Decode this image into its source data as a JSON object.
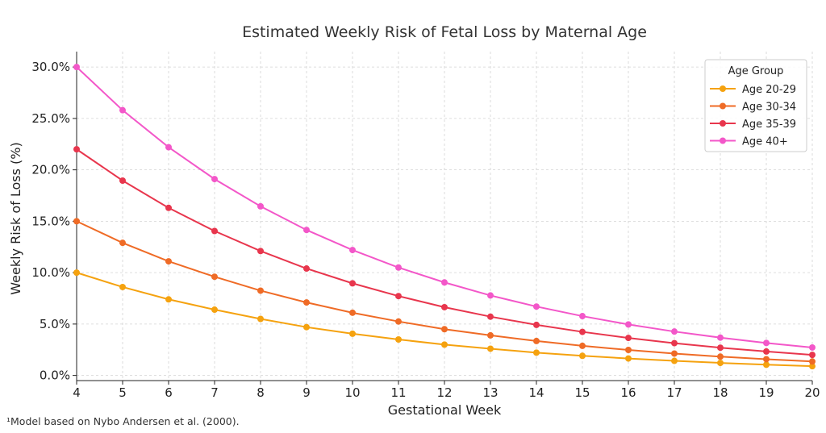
{
  "chart_data": {
    "type": "line",
    "title": "Estimated Weekly Risk of Fetal Loss by Maternal Age",
    "xlabel": "Gestational Week",
    "ylabel": "Weekly Risk of Loss (%)",
    "xlim": [
      4,
      20
    ],
    "ylim": [
      -0.5,
      31.5
    ],
    "x": [
      4,
      5,
      6,
      7,
      8,
      9,
      10,
      11,
      12,
      13,
      14,
      15,
      16,
      17,
      18,
      19,
      20
    ],
    "x_tick_labels": [
      "4",
      "5",
      "6",
      "7",
      "8",
      "9",
      "10",
      "11",
      "12",
      "13",
      "14",
      "15",
      "16",
      "17",
      "18",
      "19",
      "20"
    ],
    "y_ticks": [
      0,
      5,
      10,
      15,
      20,
      25,
      30
    ],
    "y_tick_labels": [
      "0.0%",
      "5.0%",
      "10.0%",
      "15.0%",
      "20.0%",
      "25.0%",
      "30.0%"
    ],
    "grid": true,
    "legend": {
      "title": "Age Group",
      "placement": "top-right"
    },
    "series": [
      {
        "name": "Age 20-29",
        "color": "#f5a20f",
        "values": [
          10.0,
          8.6,
          7.4,
          6.4,
          5.5,
          4.7,
          4.06,
          3.5,
          3.0,
          2.6,
          2.22,
          1.91,
          1.65,
          1.42,
          1.22,
          1.05,
          0.9
        ]
      },
      {
        "name": "Age 30-34",
        "color": "#ef6b26",
        "values": [
          15.0,
          12.9,
          11.1,
          9.6,
          8.25,
          7.1,
          6.1,
          5.25,
          4.5,
          3.9,
          3.35,
          2.88,
          2.48,
          2.13,
          1.83,
          1.58,
          1.36
        ]
      },
      {
        "name": "Age 35-39",
        "color": "#e8364d",
        "values": [
          22.0,
          18.95,
          16.3,
          14.05,
          12.1,
          10.4,
          8.96,
          7.72,
          6.64,
          5.72,
          4.92,
          4.24,
          3.65,
          3.14,
          2.7,
          2.33,
          2.0
        ]
      },
      {
        "name": "Age 40+",
        "color": "#f357c9",
        "values": [
          30.0,
          25.8,
          22.2,
          19.1,
          16.45,
          14.15,
          12.2,
          10.5,
          9.05,
          7.78,
          6.7,
          5.77,
          4.96,
          4.27,
          3.68,
          3.16,
          2.72
        ]
      }
    ]
  },
  "footnote": "¹Model based on Nybo Andersen et al. (2000)."
}
